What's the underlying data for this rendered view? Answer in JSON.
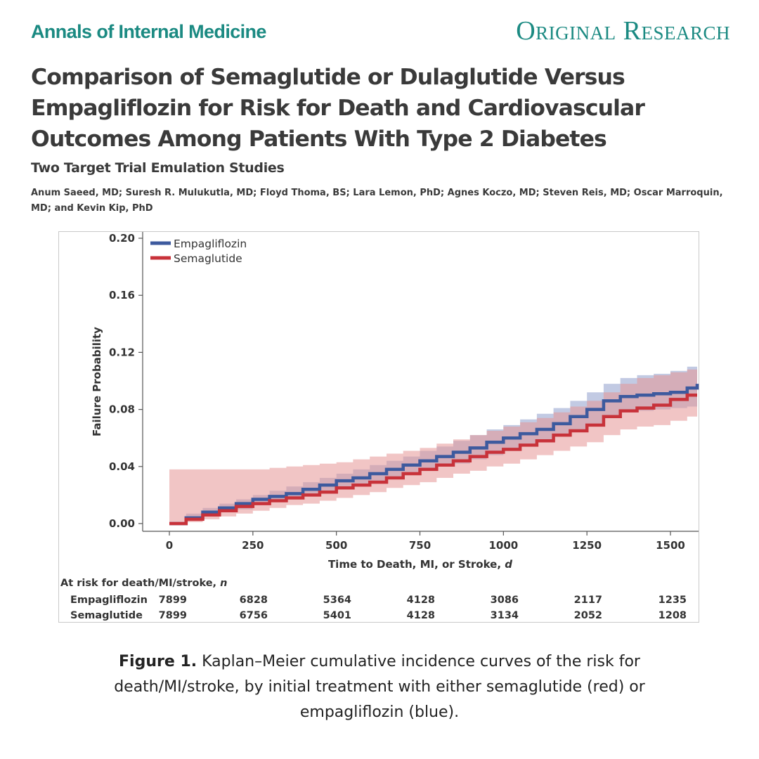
{
  "header": {
    "journal": "Annals of Internal Medicine",
    "section": "Original Research"
  },
  "article": {
    "title": "Comparison of Semaglutide or Dulaglutide Versus Empagliflozin for Risk for Death and Cardiovascular Outcomes Among Patients With Type 2 Diabetes",
    "subtitle": "Two Target Trial Emulation Studies",
    "authors": "Anum Saeed, MD; Suresh R. Mulukutla, MD; Floyd Thoma, BS; Lara Lemon, PhD; Agnes Koczo, MD; Steven Reis, MD; Oscar Marroquin, MD; and Kevin Kip, PhD"
  },
  "caption": {
    "label": "Figure 1.",
    "text": " Kaplan–Meier cumulative incidence curves of the risk for death/MI/stroke, by initial treatment with either semaglutide (red) or empagliflozin (blue)."
  },
  "at_risk": {
    "title": "At risk for death/MI/stroke,",
    "title_unit": "n",
    "rows": [
      {
        "label": "Empagliflozin",
        "values": [
          "7899",
          "6828",
          "5364",
          "4128",
          "3086",
          "2117",
          "1235"
        ]
      },
      {
        "label": "Semaglutide",
        "values": [
          "7899",
          "6756",
          "5401",
          "4128",
          "3134",
          "2052",
          "1208"
        ]
      }
    ]
  },
  "chart_data": {
    "type": "line",
    "subtype": "kaplan-meier cumulative incidence with confidence bands",
    "xlabel": "Time to Death, MI, or Stroke,",
    "xlabel_unit": "d",
    "ylabel": "Failure Probability",
    "xlim": [
      -70,
      1580
    ],
    "ylim": [
      0,
      0.2
    ],
    "xticks": [
      0,
      250,
      500,
      750,
      1000,
      1250,
      1500
    ],
    "yticks": [
      "0.00",
      "0.04",
      "0.08",
      "0.12",
      "0.16",
      "0.20"
    ],
    "legend_position": "top-left",
    "series": [
      {
        "name": "Empagliflozin",
        "color": "#3d5a9e",
        "band_color": "#8f9fcc",
        "x": [
          0,
          50,
          100,
          150,
          200,
          250,
          300,
          350,
          400,
          450,
          500,
          550,
          600,
          650,
          700,
          750,
          800,
          850,
          900,
          950,
          1000,
          1050,
          1100,
          1150,
          1200,
          1250,
          1300,
          1350,
          1400,
          1450,
          1500,
          1550,
          1580
        ],
        "values": [
          0.0,
          0.004,
          0.008,
          0.011,
          0.014,
          0.017,
          0.019,
          0.021,
          0.024,
          0.027,
          0.03,
          0.032,
          0.035,
          0.038,
          0.041,
          0.044,
          0.047,
          0.05,
          0.053,
          0.057,
          0.06,
          0.063,
          0.066,
          0.07,
          0.075,
          0.08,
          0.086,
          0.089,
          0.09,
          0.091,
          0.092,
          0.095,
          0.098
        ],
        "ci_lower": [
          0.0,
          0.002,
          0.005,
          0.008,
          0.01,
          0.013,
          0.015,
          0.017,
          0.019,
          0.022,
          0.025,
          0.027,
          0.029,
          0.032,
          0.035,
          0.037,
          0.04,
          0.042,
          0.045,
          0.048,
          0.051,
          0.054,
          0.057,
          0.061,
          0.065,
          0.07,
          0.075,
          0.078,
          0.079,
          0.08,
          0.081,
          0.082,
          0.084
        ],
        "ci_upper": [
          0.0,
          0.007,
          0.011,
          0.014,
          0.017,
          0.02,
          0.023,
          0.026,
          0.029,
          0.032,
          0.035,
          0.038,
          0.041,
          0.044,
          0.047,
          0.051,
          0.054,
          0.058,
          0.062,
          0.066,
          0.069,
          0.073,
          0.077,
          0.081,
          0.086,
          0.092,
          0.098,
          0.102,
          0.104,
          0.105,
          0.107,
          0.11,
          0.114
        ]
      },
      {
        "name": "Semaglutide",
        "color": "#c8323a",
        "band_color": "#e59595",
        "x": [
          0,
          50,
          100,
          150,
          200,
          250,
          300,
          350,
          400,
          450,
          500,
          550,
          600,
          650,
          700,
          750,
          800,
          850,
          900,
          950,
          1000,
          1050,
          1100,
          1150,
          1200,
          1250,
          1300,
          1350,
          1400,
          1450,
          1500,
          1550,
          1580
        ],
        "values": [
          0.0,
          0.003,
          0.006,
          0.009,
          0.012,
          0.014,
          0.016,
          0.018,
          0.02,
          0.022,
          0.025,
          0.027,
          0.029,
          0.032,
          0.035,
          0.038,
          0.041,
          0.044,
          0.047,
          0.05,
          0.052,
          0.055,
          0.058,
          0.062,
          0.065,
          0.069,
          0.075,
          0.079,
          0.081,
          0.083,
          0.087,
          0.09,
          0.09
        ],
        "ci_lower": [
          0.0,
          0.001,
          0.003,
          0.005,
          0.007,
          0.009,
          0.011,
          0.013,
          0.014,
          0.016,
          0.018,
          0.02,
          0.022,
          0.025,
          0.027,
          0.029,
          0.032,
          0.035,
          0.037,
          0.04,
          0.042,
          0.045,
          0.048,
          0.051,
          0.054,
          0.057,
          0.062,
          0.066,
          0.068,
          0.069,
          0.072,
          0.075,
          0.075
        ],
        "ci_upper": [
          0.038,
          0.038,
          0.038,
          0.038,
          0.038,
          0.038,
          0.039,
          0.04,
          0.041,
          0.042,
          0.043,
          0.045,
          0.047,
          0.049,
          0.051,
          0.053,
          0.056,
          0.059,
          0.062,
          0.065,
          0.068,
          0.071,
          0.074,
          0.078,
          0.082,
          0.086,
          0.092,
          0.098,
          0.102,
          0.104,
          0.106,
          0.108,
          0.109
        ]
      }
    ]
  }
}
